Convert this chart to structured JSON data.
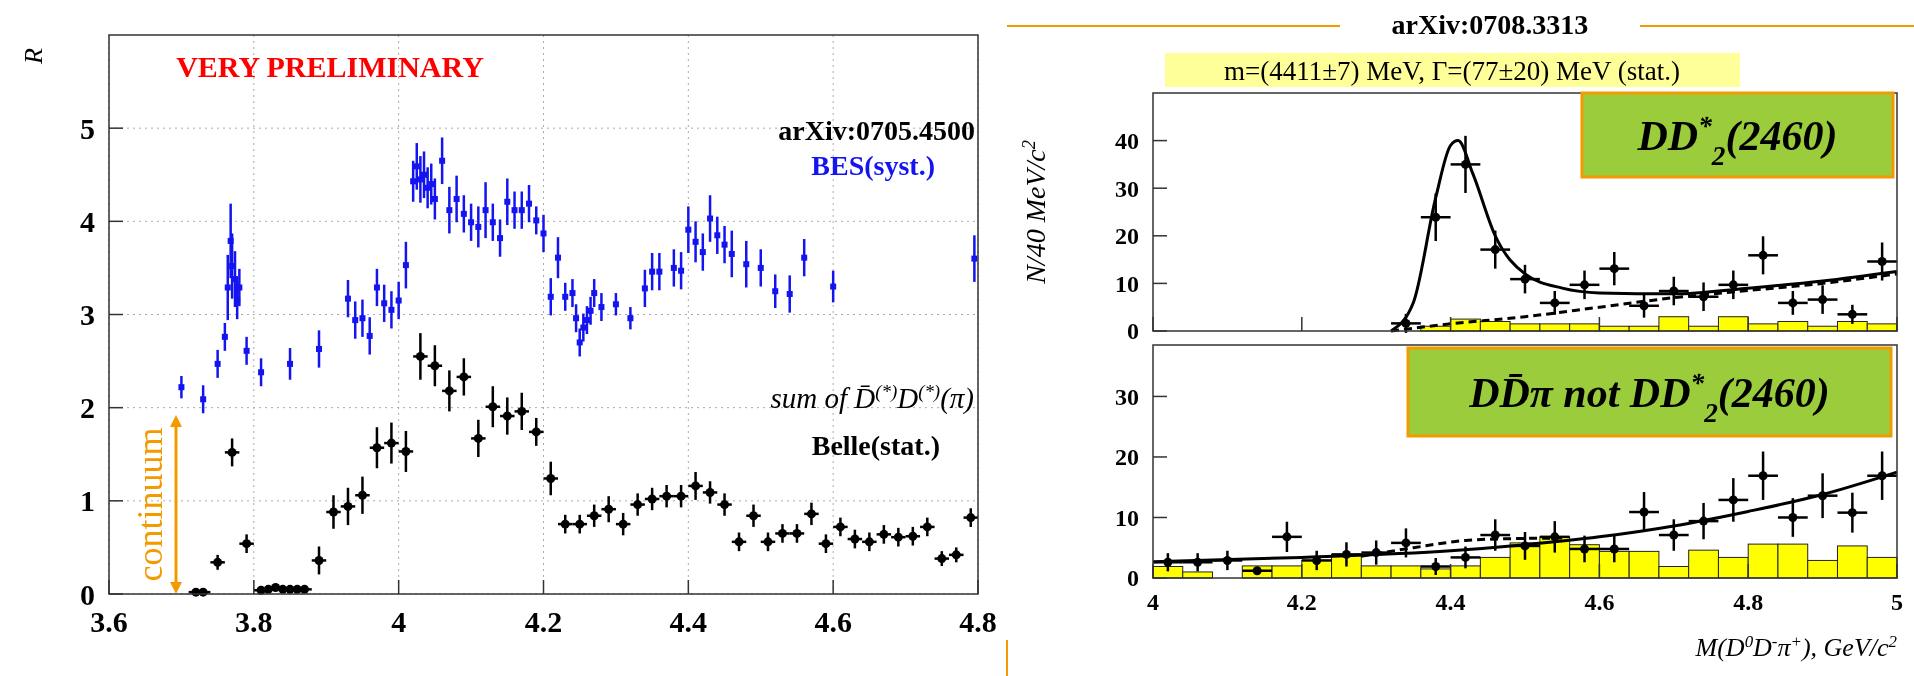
{
  "chart_data": [
    {
      "type": "scatter",
      "ylabel": "R",
      "xlim": [
        3.6,
        4.8
      ],
      "ylim": [
        0,
        6
      ],
      "xticks": [
        3.6,
        3.8,
        4,
        4.2,
        4.4,
        4.6,
        4.8
      ],
      "yticks": [
        0,
        1,
        2,
        3,
        4,
        5
      ],
      "grid": true,
      "annotations": [
        "VERY PRELIMINARY",
        "arXiv:0705.4500",
        "sum of D̄$^{(*)}$D$^{(*)}$(π)",
        "continuum"
      ],
      "series": [
        {
          "name": "BES(syst.)",
          "color": "#1414f0",
          "marker": "square",
          "x": [
            3.7,
            3.73,
            3.75,
            3.76,
            3.764,
            3.768,
            3.77,
            3.774,
            3.777,
            3.78,
            3.79,
            3.81,
            3.85,
            3.89,
            3.93,
            3.94,
            3.95,
            3.96,
            3.97,
            3.98,
            3.99,
            4.0,
            4.01,
            4.02,
            4.025,
            4.03,
            4.035,
            4.04,
            4.045,
            4.05,
            4.06,
            4.07,
            4.08,
            4.09,
            4.1,
            4.11,
            4.12,
            4.13,
            4.14,
            4.15,
            4.16,
            4.17,
            4.18,
            4.19,
            4.2,
            4.21,
            4.22,
            4.23,
            4.24,
            4.245,
            4.25,
            4.255,
            4.26,
            4.265,
            4.27,
            4.28,
            4.3,
            4.32,
            4.34,
            4.35,
            4.36,
            4.38,
            4.39,
            4.4,
            4.41,
            4.42,
            4.43,
            4.44,
            4.45,
            4.46,
            4.48,
            4.5,
            4.52,
            4.54,
            4.56,
            4.6,
            4.795
          ],
          "values": [
            2.22,
            2.09,
            2.47,
            2.76,
            3.29,
            3.79,
            3.52,
            3.38,
            3.15,
            3.29,
            2.61,
            2.38,
            2.47,
            2.63,
            3.17,
            2.94,
            2.96,
            2.77,
            3.29,
            3.12,
            3.05,
            3.15,
            3.53,
            4.43,
            4.59,
            4.45,
            4.5,
            4.36,
            4.4,
            4.24,
            4.65,
            4.12,
            4.24,
            4.08,
            3.99,
            3.94,
            4.12,
            3.99,
            3.82,
            4.21,
            4.12,
            4.12,
            4.19,
            4.01,
            3.87,
            3.19,
            3.61,
            3.19,
            3.23,
            2.96,
            2.7,
            2.86,
            2.94,
            3.04,
            3.23,
            3.08,
            3.11,
            2.96,
            3.28,
            3.46,
            3.46,
            3.5,
            3.47,
            3.91,
            3.78,
            3.67,
            4.03,
            3.85,
            3.75,
            3.65,
            3.54,
            3.5,
            3.25,
            3.22,
            3.61,
            3.3,
            3.6
          ],
          "errors": [
            0.12,
            0.15,
            0.15,
            0.15,
            0.35,
            0.4,
            0.35,
            0.3,
            0.2,
            0.2,
            0.15,
            0.15,
            0.17,
            0.2,
            0.2,
            0.2,
            0.2,
            0.2,
            0.2,
            0.2,
            0.2,
            0.2,
            0.25,
            0.22,
            0.25,
            0.25,
            0.25,
            0.22,
            0.22,
            0.22,
            0.25,
            0.25,
            0.25,
            0.2,
            0.2,
            0.22,
            0.3,
            0.2,
            0.2,
            0.25,
            0.2,
            0.2,
            0.2,
            0.15,
            0.2,
            0.2,
            0.22,
            0.15,
            0.15,
            0.15,
            0.15,
            0.15,
            0.15,
            0.15,
            0.15,
            0.15,
            0.12,
            0.12,
            0.2,
            0.2,
            0.2,
            0.2,
            0.2,
            0.25,
            0.22,
            0.2,
            0.25,
            0.2,
            0.2,
            0.25,
            0.25,
            0.2,
            0.18,
            0.2,
            0.2,
            0.17,
            0.25
          ]
        },
        {
          "name": "Belle(stat.)",
          "color": "#000000",
          "marker": "circle",
          "x": [
            3.72,
            3.73,
            3.75,
            3.77,
            3.79,
            3.81,
            3.82,
            3.83,
            3.84,
            3.85,
            3.86,
            3.87,
            3.89,
            3.91,
            3.93,
            3.95,
            3.97,
            3.99,
            4.01,
            4.03,
            4.05,
            4.07,
            4.09,
            4.11,
            4.13,
            4.15,
            4.17,
            4.19,
            4.21,
            4.23,
            4.25,
            4.27,
            4.29,
            4.31,
            4.33,
            4.35,
            4.37,
            4.39,
            4.41,
            4.43,
            4.45,
            4.47,
            4.49,
            4.51,
            4.53,
            4.55,
            4.57,
            4.59,
            4.61,
            4.63,
            4.65,
            4.67,
            4.69,
            4.71,
            4.73,
            4.75,
            4.77,
            4.79
          ],
          "values": [
            0.02,
            0.02,
            0.34,
            1.52,
            0.54,
            0.04,
            0.05,
            0.07,
            0.05,
            0.05,
            0.05,
            0.05,
            0.36,
            0.88,
            0.94,
            1.06,
            1.57,
            1.62,
            1.53,
            2.55,
            2.45,
            2.18,
            2.33,
            1.67,
            2.01,
            1.91,
            1.96,
            1.74,
            1.24,
            0.75,
            0.75,
            0.84,
            0.91,
            0.75,
            0.96,
            1.02,
            1.05,
            1.05,
            1.16,
            1.09,
            0.96,
            0.56,
            0.84,
            0.56,
            0.65,
            0.65,
            0.86,
            0.54,
            0.72,
            0.59,
            0.56,
            0.64,
            0.61,
            0.62,
            0.72,
            0.38,
            0.42,
            0.82
          ],
          "errors": [
            null,
            null,
            0.08,
            0.15,
            0.1,
            null,
            null,
            null,
            null,
            null,
            null,
            null,
            0.15,
            0.18,
            0.2,
            0.2,
            0.22,
            0.22,
            0.22,
            0.25,
            0.22,
            0.22,
            0.2,
            0.2,
            0.22,
            0.2,
            0.2,
            0.15,
            0.18,
            0.1,
            0.1,
            0.12,
            0.14,
            0.12,
            0.12,
            0.12,
            0.12,
            0.12,
            0.15,
            0.12,
            0.12,
            0.1,
            0.12,
            0.1,
            0.1,
            0.1,
            0.12,
            0.1,
            0.1,
            0.1,
            0.1,
            0.1,
            0.1,
            0.1,
            0.1,
            0.08,
            0.08,
            0.1
          ],
          "xerrors": [
            0.01,
            0.01,
            0.01,
            0.01,
            0.01,
            0.01,
            0.01,
            0.01,
            0.01,
            0.01,
            0.01,
            0.01,
            0.01,
            0.01,
            0.01,
            0.01,
            0.01,
            0.01,
            0.01,
            0.01,
            0.01,
            0.01,
            0.01,
            0.01,
            0.01,
            0.01,
            0.01,
            0.01,
            0.01,
            0.01,
            0.01,
            0.01,
            0.01,
            0.01,
            0.01,
            0.01,
            0.01,
            0.01,
            0.01,
            0.01,
            0.01,
            0.01,
            0.01,
            0.01,
            0.01,
            0.01,
            0.01,
            0.01,
            0.01,
            0.01,
            0.01,
            0.01,
            0.01,
            0.01,
            0.01,
            0.01,
            0.01,
            0.01
          ]
        }
      ]
    },
    {
      "type": "scatter",
      "title": "arXiv:0708.3313",
      "ylabel": "N/40 MeV/c$^{2}$",
      "xlim": [
        4,
        5
      ],
      "ylim": [
        0,
        50
      ],
      "xticks": [
        4,
        4.2,
        4.4,
        4.6,
        4.8,
        5
      ],
      "yticks": [
        0,
        10,
        20,
        30,
        40
      ],
      "tick_labels": "y",
      "annotations": [
        "m=(4411±7) MeV, Γ=(77±20) MeV  (stat.)",
        "DD$^{*}$$_{2}$(2460)"
      ],
      "series": [
        {
          "type": "histogram",
          "color": "#ffff00",
          "bins": [
            4,
            4.04,
            4.08,
            4.12,
            4.16,
            4.2,
            4.24,
            4.28,
            4.32,
            4.36,
            4.4,
            4.44,
            4.48,
            4.52,
            4.56,
            4.6,
            4.64,
            4.68,
            4.72,
            4.76,
            4.8,
            4.84,
            4.88,
            4.92,
            4.96,
            5
          ],
          "values": [
            0,
            0,
            0,
            0,
            0,
            0,
            0,
            0,
            null,
            1,
            2.5,
            2,
            1.5,
            1.5,
            1.5,
            1,
            1,
            3,
            1,
            3,
            1.5,
            2,
            1,
            2,
            1.5
          ]
        },
        {
          "type": "line",
          "color": "#000000",
          "line_style": "dashed",
          "x": [
            4.32,
            4.4,
            4.5,
            4.6,
            4.7,
            4.8,
            4.9,
            5
          ],
          "values": [
            0,
            1.5,
            3,
            5,
            7,
            8.5,
            10,
            12
          ]
        },
        {
          "type": "line",
          "color": "#000000",
          "line_style": "solid",
          "x": [
            4.32,
            4.35,
            4.38,
            4.4,
            4.41,
            4.43,
            4.46,
            4.5,
            4.55,
            4.6,
            4.7,
            4.8,
            4.9,
            5
          ],
          "values": [
            0,
            6,
            28,
            39,
            40,
            33,
            20,
            12,
            9,
            8,
            7.8,
            9,
            10.5,
            12.5
          ]
        },
        {
          "color": "#000000",
          "marker": "circle",
          "x": [
            4.34,
            4.38,
            4.42,
            4.46,
            4.5,
            4.54,
            4.58,
            4.62,
            4.66,
            4.7,
            4.74,
            4.78,
            4.82,
            4.86,
            4.9,
            4.94,
            4.98
          ],
          "values": [
            1.6,
            23.9,
            35,
            17.1,
            10.9,
            5.9,
            9.7,
            13.1,
            5.3,
            8.4,
            7.2,
            9.7,
            15.9,
            5.9,
            6.6,
            3.5,
            14.6
          ],
          "errors": [
            2,
            5,
            6,
            4,
            3,
            2.5,
            3,
            3.5,
            2.5,
            3,
            3,
            3,
            4,
            2.5,
            3,
            2,
            4
          ],
          "xerrors": [
            0.02,
            0.02,
            0.02,
            0.02,
            0.02,
            0.02,
            0.02,
            0.02,
            0.02,
            0.02,
            0.02,
            0.02,
            0.02,
            0.02,
            0.02,
            0.02,
            0.02
          ]
        }
      ]
    },
    {
      "type": "scatter",
      "xlabel": "M(D$^{0}$D$^{-}$π$^{+}$), GeV/c$^{2}$",
      "xlim": [
        4,
        5
      ],
      "ylim": [
        0,
        38.5
      ],
      "xticks": [
        4,
        4.2,
        4.4,
        4.6,
        4.8,
        5
      ],
      "yticks": [
        0,
        10,
        20,
        30
      ],
      "annotations": [
        "DD̄π not DD$^{*}$$_{2}$(2460)"
      ],
      "series": [
        {
          "type": "histogram",
          "color": "#ffff00",
          "bins": [
            4,
            4.04,
            4.08,
            4.12,
            4.16,
            4.2,
            4.24,
            4.28,
            4.32,
            4.36,
            4.4,
            4.44,
            4.48,
            4.52,
            4.56,
            4.6,
            4.64,
            4.68,
            4.72,
            4.76,
            4.8,
            4.84,
            4.88,
            4.92,
            4.96,
            5
          ],
          "values": [
            1.9,
            1,
            0,
            2,
            2,
            2.9,
            3.9,
            2,
            2,
            1.5,
            2,
            3.4,
            5.8,
            6.8,
            5.5,
            4.4,
            4.4,
            1.9,
            4.6,
            3.4,
            5.6,
            5.6,
            2.9,
            5.3,
            3.4
          ]
        },
        {
          "type": "line",
          "color": "#000000",
          "line_style": "dashed",
          "x": [
            4.28,
            4.35,
            4.42,
            4.48,
            4.55
          ],
          "values": [
            3.6,
            5,
            6.2,
            6.5,
            6.6
          ]
        },
        {
          "type": "line",
          "color": "#000000",
          "line_style": "solid",
          "x": [
            4,
            4.2,
            4.4,
            4.5,
            4.6,
            4.7,
            4.8,
            4.9,
            5
          ],
          "values": [
            2.7,
            3.4,
            4.5,
            5.5,
            6.8,
            8.6,
            11,
            13.8,
            17.5
          ]
        },
        {
          "color": "#000000",
          "marker": "circle",
          "x": [
            4.02,
            4.06,
            4.1,
            4.14,
            4.18,
            4.22,
            4.26,
            4.3,
            4.34,
            4.38,
            4.42,
            4.46,
            4.5,
            4.54,
            4.58,
            4.62,
            4.66,
            4.7,
            4.74,
            4.78,
            4.82,
            4.86,
            4.9,
            4.94,
            4.98
          ],
          "values": [
            2.6,
            2.6,
            2.9,
            1.2,
            6.8,
            2.9,
            3.9,
            4.2,
            5.8,
            1.9,
            3.4,
            7.1,
            5.3,
            6.8,
            4.8,
            4.8,
            10.9,
            7.1,
            9.4,
            12.9,
            16.9,
            10,
            13.6,
            10.8,
            16.9
          ],
          "errors": [
            1.5,
            1.5,
            1.6,
            null,
            2.5,
            1.6,
            2,
            2,
            2.4,
            1.4,
            1.8,
            2.6,
            2.3,
            2.6,
            2.2,
            2.2,
            3.3,
            2.6,
            3,
            3.6,
            4,
            3.2,
            3.7,
            3.3,
            4
          ],
          "xerrors": [
            0.02,
            0.02,
            0.02,
            0.02,
            0.02,
            0.02,
            0.02,
            0.02,
            0.02,
            0.02,
            0.02,
            0.02,
            0.02,
            0.02,
            0.02,
            0.02,
            0.02,
            0.02,
            0.02,
            0.02,
            0.02,
            0.02,
            0.02,
            0.02,
            0.02
          ]
        }
      ]
    }
  ]
}
